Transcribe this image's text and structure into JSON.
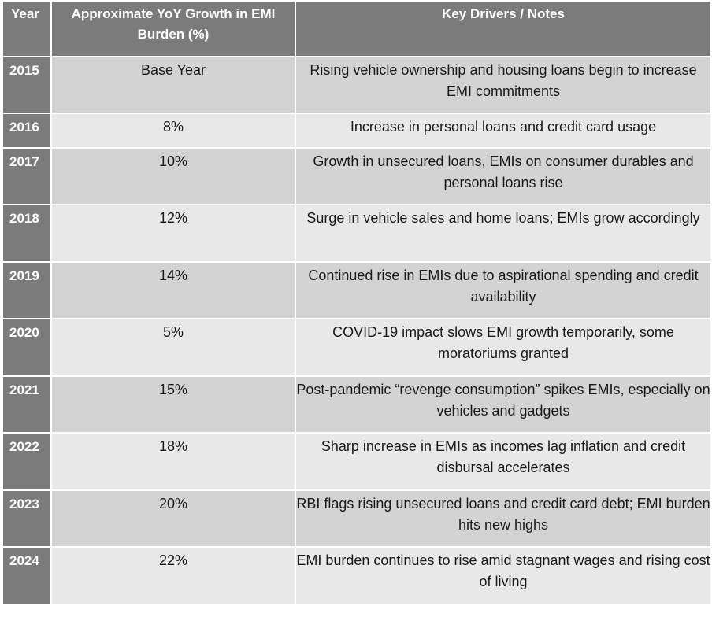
{
  "header": {
    "year": "Year",
    "growth": "Approximate YoY Growth in EMI Burden (%)",
    "notes": "Key Drivers / Notes"
  },
  "rows": [
    {
      "year": "2015",
      "growth": "Base Year",
      "notes": "Rising vehicle ownership and housing loans begin to increase EMI commitments"
    },
    {
      "year": "2016",
      "growth": "8%",
      "notes": "Increase in personal loans and credit card usage"
    },
    {
      "year": "2017",
      "growth": "10%",
      "notes": "Growth in unsecured loans, EMIs on consumer durables and personal loans rise"
    },
    {
      "year": "2018",
      "growth": "12%",
      "notes": "Surge in vehicle sales and home loans; EMIs grow accordingly"
    },
    {
      "year": "2019",
      "growth": "14%",
      "notes": "Continued rise in EMIs due to aspirational spending and credit availability"
    },
    {
      "year": "2020",
      "growth": "5%",
      "notes": "COVID-19 impact slows EMI growth temporarily, some moratoriums granted"
    },
    {
      "year": "2021",
      "growth": "15%",
      "notes": "Post-pandemic “revenge consumption” spikes EMIs, especially on vehicles and gadgets"
    },
    {
      "year": "2022",
      "growth": "18%",
      "notes": "Sharp increase in EMIs as incomes lag inflation and credit disbursal accelerates"
    },
    {
      "year": "2023",
      "growth": "20%",
      "notes": "RBI flags rising unsecured loans and credit card debt; EMI burden hits new highs"
    },
    {
      "year": "2024",
      "growth": "22%",
      "notes": "EMI burden continues to rise amid stagnant wages and rising cost of living"
    }
  ]
}
